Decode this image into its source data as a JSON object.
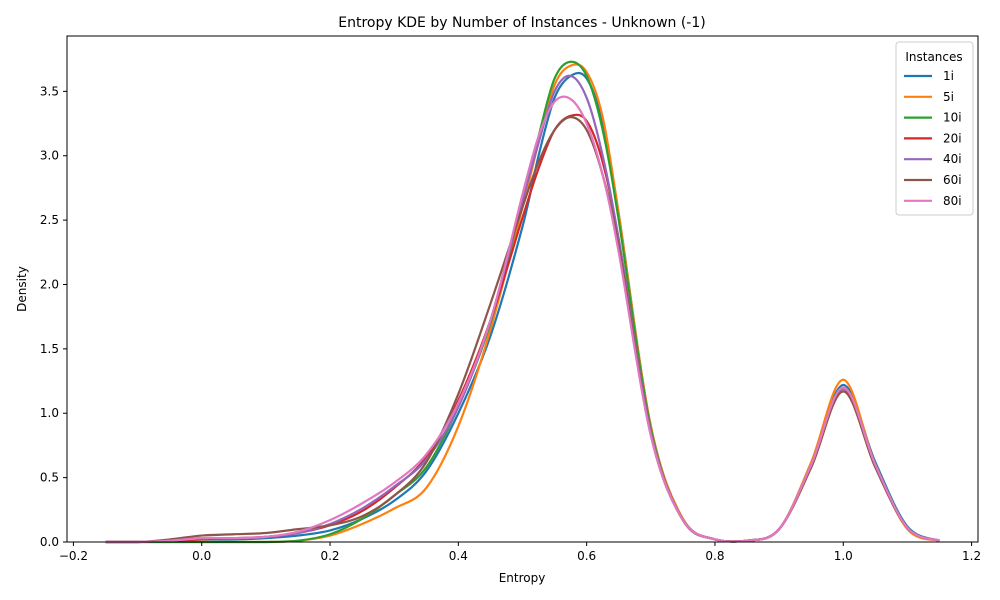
{
  "chart_data": {
    "type": "line",
    "title": "Entropy KDE by Number of Instances - Unknown (-1)",
    "xlabel": "Entropy",
    "ylabel": "Density",
    "xlim": [
      -0.21,
      1.21
    ],
    "ylim": [
      0,
      3.93
    ],
    "xticks": [
      -0.2,
      0.0,
      0.2,
      0.4,
      0.6,
      0.8,
      1.0,
      1.2
    ],
    "xtick_labels": [
      "−0.2",
      "0.0",
      "0.2",
      "0.4",
      "0.6",
      "0.8",
      "1.0",
      "1.2"
    ],
    "yticks": [
      0.0,
      0.5,
      1.0,
      1.5,
      2.0,
      2.5,
      3.0,
      3.5
    ],
    "ytick_labels": [
      "0.0",
      "0.5",
      "1.0",
      "1.5",
      "2.0",
      "2.5",
      "3.0",
      "3.5"
    ],
    "grid": false,
    "legend": {
      "title": "Instances",
      "placement": "top-right"
    },
    "x": [
      -0.15,
      -0.1,
      -0.05,
      0.0,
      0.05,
      0.1,
      0.15,
      0.2,
      0.25,
      0.3,
      0.35,
      0.4,
      0.45,
      0.5,
      0.525,
      0.55,
      0.575,
      0.6,
      0.625,
      0.65,
      0.7,
      0.75,
      0.8,
      0.85,
      0.9,
      0.95,
      1.0,
      1.05,
      1.1,
      1.15
    ],
    "series": [
      {
        "name": "1i",
        "color": "#1f77b4",
        "values": [
          0.0,
          0.0,
          0.01,
          0.02,
          0.02,
          0.03,
          0.05,
          0.09,
          0.18,
          0.32,
          0.55,
          1.0,
          1.6,
          2.45,
          3.0,
          3.45,
          3.62,
          3.6,
          3.25,
          2.55,
          0.9,
          0.18,
          0.02,
          0.01,
          0.1,
          0.6,
          1.22,
          0.62,
          0.12,
          0.01
        ]
      },
      {
        "name": "5i",
        "color": "#ff7f0e",
        "values": [
          0.0,
          0.0,
          0.0,
          0.0,
          0.0,
          0.0,
          0.01,
          0.05,
          0.14,
          0.26,
          0.42,
          0.9,
          1.65,
          2.6,
          3.1,
          3.55,
          3.7,
          3.65,
          3.3,
          2.55,
          0.9,
          0.18,
          0.02,
          0.01,
          0.1,
          0.62,
          1.26,
          0.6,
          0.1,
          0.01
        ]
      },
      {
        "name": "10i",
        "color": "#2ca02c",
        "values": [
          0.0,
          0.0,
          0.0,
          0.0,
          0.0,
          0.0,
          0.01,
          0.06,
          0.18,
          0.36,
          0.58,
          1.05,
          1.7,
          2.65,
          3.15,
          3.6,
          3.73,
          3.62,
          3.2,
          2.5,
          0.88,
          0.17,
          0.02,
          0.01,
          0.1,
          0.6,
          1.2,
          0.6,
          0.11,
          0.01
        ]
      },
      {
        "name": "20i",
        "color": "#d62728",
        "values": [
          0.0,
          0.0,
          0.01,
          0.02,
          0.03,
          0.04,
          0.07,
          0.13,
          0.24,
          0.42,
          0.66,
          1.1,
          1.72,
          2.52,
          2.9,
          3.2,
          3.31,
          3.27,
          2.95,
          2.35,
          0.85,
          0.17,
          0.02,
          0.01,
          0.1,
          0.58,
          1.17,
          0.58,
          0.11,
          0.01
        ]
      },
      {
        "name": "40i",
        "color": "#9467bd",
        "values": [
          0.0,
          0.0,
          0.01,
          0.03,
          0.03,
          0.04,
          0.07,
          0.14,
          0.26,
          0.43,
          0.64,
          1.05,
          1.72,
          2.65,
          3.1,
          3.5,
          3.62,
          3.45,
          3.0,
          2.35,
          0.85,
          0.17,
          0.02,
          0.01,
          0.1,
          0.59,
          1.19,
          0.59,
          0.11,
          0.01
        ]
      },
      {
        "name": "60i",
        "color": "#8c564b",
        "values": [
          0.0,
          0.0,
          0.02,
          0.05,
          0.06,
          0.07,
          0.1,
          0.13,
          0.2,
          0.36,
          0.62,
          1.15,
          1.85,
          2.6,
          2.95,
          3.2,
          3.3,
          3.2,
          2.85,
          2.3,
          0.83,
          0.17,
          0.02,
          0.01,
          0.1,
          0.58,
          1.17,
          0.58,
          0.11,
          0.01
        ]
      },
      {
        "name": "80i",
        "color": "#e377c2",
        "values": [
          0.0,
          0.0,
          0.01,
          0.03,
          0.03,
          0.04,
          0.08,
          0.17,
          0.3,
          0.46,
          0.68,
          1.08,
          1.72,
          2.7,
          3.15,
          3.42,
          3.44,
          3.25,
          2.85,
          2.25,
          0.83,
          0.17,
          0.02,
          0.01,
          0.1,
          0.6,
          1.2,
          0.6,
          0.11,
          0.01
        ]
      }
    ]
  }
}
